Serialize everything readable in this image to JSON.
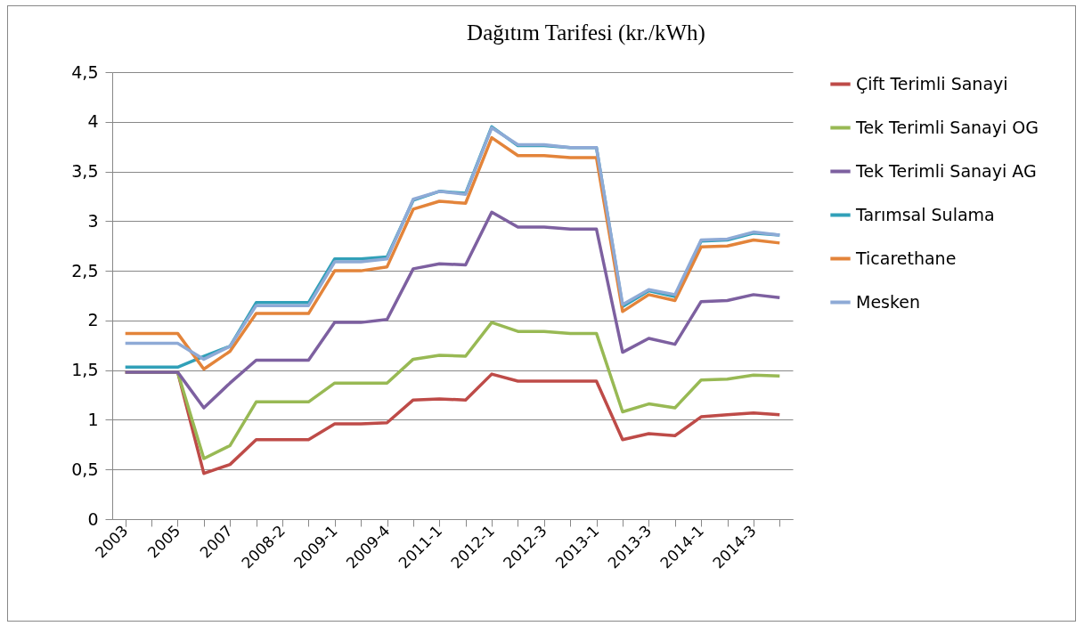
{
  "chart_data": {
    "type": "line",
    "title": "Dağıtım Tarifesi  (kr./kWh)",
    "categories": [
      "2003",
      null,
      "2005",
      null,
      "2007",
      null,
      "2008-2",
      null,
      "2009-1",
      null,
      "2009-4",
      null,
      "2011-1",
      null,
      "2012-1",
      null,
      "2012-3",
      null,
      "2013-1",
      null,
      "2013-3",
      null,
      "2014-1",
      null,
      "2014-3",
      null
    ],
    "series": [
      {
        "name": "Çift Terimli Sanayi",
        "color": "#be4b48",
        "values": [
          1.48,
          1.48,
          1.48,
          0.46,
          0.55,
          0.8,
          0.8,
          0.8,
          0.96,
          0.96,
          0.97,
          1.2,
          1.21,
          1.2,
          1.46,
          1.39,
          1.39,
          1.39,
          1.39,
          0.8,
          0.86,
          0.84,
          1.03,
          1.05,
          1.07,
          1.05
        ]
      },
      {
        "name": "Tek Terimli Sanayi OG",
        "color": "#98b954",
        "values": [
          1.48,
          1.48,
          1.48,
          0.61,
          0.74,
          1.18,
          1.18,
          1.18,
          1.37,
          1.37,
          1.37,
          1.61,
          1.65,
          1.64,
          1.98,
          1.89,
          1.89,
          1.87,
          1.87,
          1.08,
          1.16,
          1.12,
          1.4,
          1.41,
          1.45,
          1.44
        ]
      },
      {
        "name": "Tek Terimli Sanayi AG",
        "color": "#7d60a0",
        "values": [
          1.48,
          1.48,
          1.48,
          1.12,
          1.37,
          1.6,
          1.6,
          1.6,
          1.98,
          1.98,
          2.01,
          2.52,
          2.57,
          2.56,
          3.09,
          2.94,
          2.94,
          2.92,
          2.92,
          1.68,
          1.82,
          1.76,
          2.19,
          2.2,
          2.26,
          2.23
        ]
      },
      {
        "name": "Tarımsal Sulama",
        "color": "#31a0b8",
        "values": [
          1.53,
          1.53,
          1.53,
          1.64,
          1.74,
          2.18,
          2.18,
          2.18,
          2.62,
          2.62,
          2.64,
          3.21,
          3.3,
          3.28,
          3.95,
          3.76,
          3.76,
          3.74,
          3.74,
          2.14,
          2.3,
          2.24,
          2.8,
          2.81,
          2.88,
          2.86
        ]
      },
      {
        "name": "Ticarethane",
        "color": "#e3843a",
        "values": [
          1.87,
          1.87,
          1.87,
          1.51,
          1.69,
          2.07,
          2.07,
          2.07,
          2.5,
          2.5,
          2.54,
          3.12,
          3.2,
          3.18,
          3.84,
          3.66,
          3.66,
          3.64,
          3.64,
          2.09,
          2.26,
          2.2,
          2.74,
          2.75,
          2.81,
          2.78
        ]
      },
      {
        "name": "Mesken",
        "color": "#8eaad6",
        "values": [
          1.77,
          1.77,
          1.77,
          1.61,
          1.74,
          2.15,
          2.15,
          2.15,
          2.59,
          2.59,
          2.62,
          3.22,
          3.3,
          3.27,
          3.94,
          3.77,
          3.77,
          3.74,
          3.74,
          2.16,
          2.31,
          2.26,
          2.81,
          2.82,
          2.89,
          2.86
        ]
      }
    ],
    "ylim": [
      0,
      4.5
    ],
    "yticks": [
      0,
      {
        "value": 0.5,
        "label": "0,5"
      },
      1,
      {
        "value": 1.5,
        "label": "1,5"
      },
      2,
      {
        "value": 2.5,
        "label": "2,5"
      },
      3,
      {
        "value": 3.5,
        "label": "3,5"
      },
      4,
      {
        "value": 4.5,
        "label": "4,5"
      }
    ],
    "grid": "y",
    "legend": "right",
    "line_style": "solid",
    "marker": "none"
  }
}
